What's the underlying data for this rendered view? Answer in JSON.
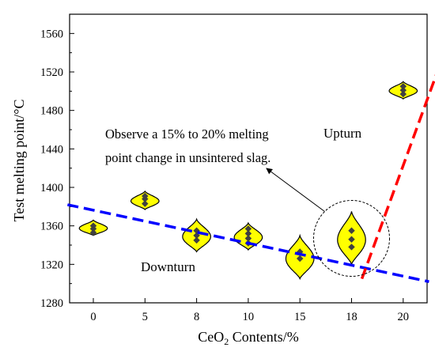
{
  "chart_data": {
    "type": "violin",
    "xlabel_main": "CeO",
    "xlabel_sub": "2",
    "xlabel_tail": " Contents/%",
    "ylabel": "Test melting point/°C",
    "categories": [
      "0",
      "5",
      "8",
      "10",
      "15",
      "18",
      "20"
    ],
    "ylim": [
      1280,
      1580
    ],
    "yticks": [
      1280,
      1320,
      1360,
      1400,
      1440,
      1480,
      1520,
      1560
    ],
    "groups": [
      {
        "category": "0",
        "min": 1350,
        "max": 1366,
        "points": [
          1353,
          1357,
          1360
        ]
      },
      {
        "category": "5",
        "min": 1377,
        "max": 1396,
        "points": [
          1383,
          1388,
          1391
        ]
      },
      {
        "category": "8",
        "min": 1333,
        "max": 1367,
        "points": [
          1345,
          1350,
          1355
        ]
      },
      {
        "category": "10",
        "min": 1335,
        "max": 1363,
        "points": [
          1342,
          1347,
          1352,
          1357
        ]
      },
      {
        "category": "15",
        "min": 1305,
        "max": 1350,
        "points": [
          1326,
          1333
        ]
      },
      {
        "category": "18",
        "min": 1320,
        "max": 1375,
        "points": [
          1338,
          1346,
          1355
        ]
      },
      {
        "category": "20",
        "min": 1492,
        "max": 1510,
        "points": [
          1497,
          1501,
          1505
        ]
      }
    ],
    "trend_lines": [
      {
        "label": "Downturn",
        "color": "#0000ff",
        "x": [
          -0.5,
          6.5
        ],
        "y": [
          1382,
          1302
        ]
      },
      {
        "label": "Upturn",
        "color": "#ff0000",
        "x": [
          5.2,
          6.85
        ],
        "y": [
          1305,
          1548
        ]
      }
    ],
    "annotation": {
      "line1": "Observe a 15% to 20% melting",
      "line2": "point change in unsintered slag.",
      "target_category": "18",
      "target_value": 1347
    },
    "colors": {
      "violin_fill": "#ffff00",
      "violin_stroke": "#000000",
      "point": "#404040"
    }
  }
}
